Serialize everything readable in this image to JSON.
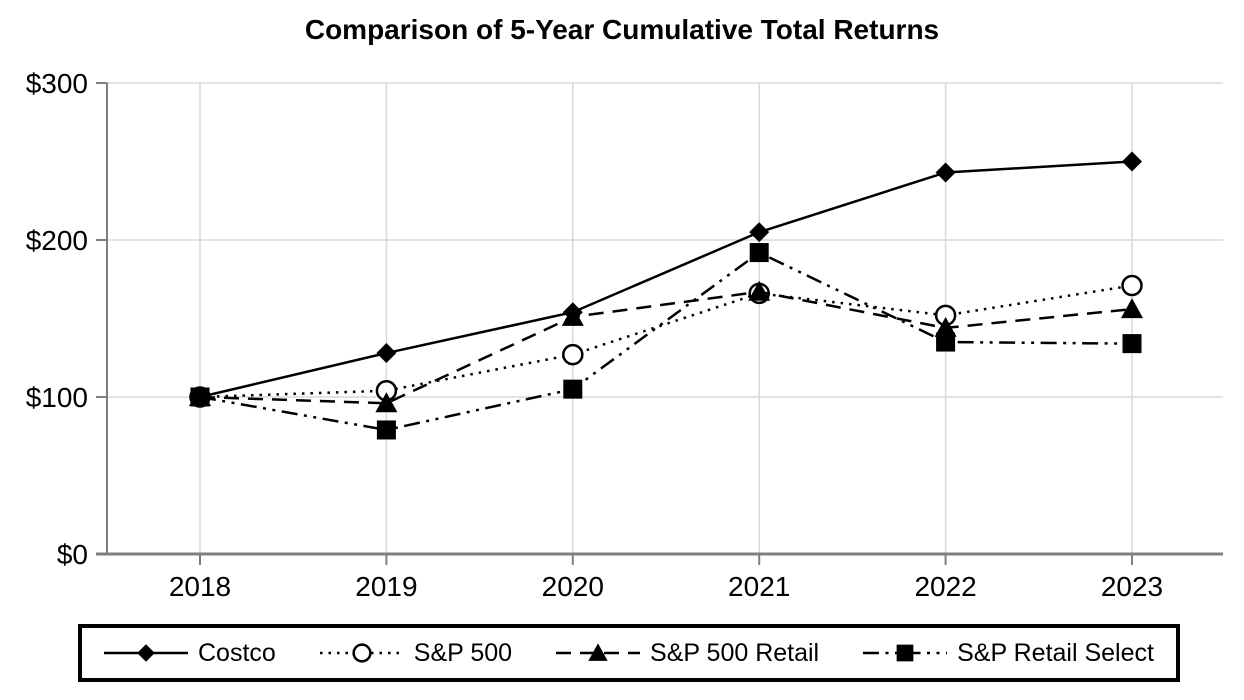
{
  "title": "Comparison of 5-Year Cumulative Total Returns",
  "chart_data": {
    "type": "line",
    "title": "Comparison of 5-Year Cumulative Total Returns",
    "x": [
      2018,
      2019,
      2020,
      2021,
      2022,
      2023
    ],
    "x_tick_labels": [
      "2018",
      "2019",
      "2020",
      "2021",
      "2022",
      "2023"
    ],
    "y_ticks": [
      0,
      100,
      200,
      300
    ],
    "y_tick_labels": [
      "$0",
      "$100",
      "$200",
      "$300"
    ],
    "ylim": [
      0,
      300
    ],
    "xlabel": "",
    "ylabel": "",
    "grid": "vertical lines at each year and horizontal lines at $100/$200/$300, light gray",
    "legend_position": "bottom, boxed with thick black border",
    "series": [
      {
        "name": "Costco",
        "marker": "filled-diamond",
        "line_style": "solid",
        "values": [
          100,
          128,
          154,
          205,
          243,
          250
        ]
      },
      {
        "name": "S&P 500",
        "marker": "open-circle",
        "line_style": "dotted",
        "values": [
          100,
          104,
          127,
          166,
          152,
          171
        ]
      },
      {
        "name": "S&P 500 Retail",
        "marker": "filled-triangle",
        "line_style": "dashed",
        "values": [
          100,
          96,
          151,
          167,
          144,
          156
        ]
      },
      {
        "name": "S&P Retail Select",
        "marker": "filled-square",
        "line_style": "dash-dot-dot",
        "values": [
          100,
          79,
          105,
          192,
          135,
          134
        ]
      }
    ],
    "colors": {
      "series": "#000000",
      "grid": "#d9d9d9",
      "axis": "#7f7f7f",
      "background": "#ffffff",
      "text": "#000000"
    }
  }
}
